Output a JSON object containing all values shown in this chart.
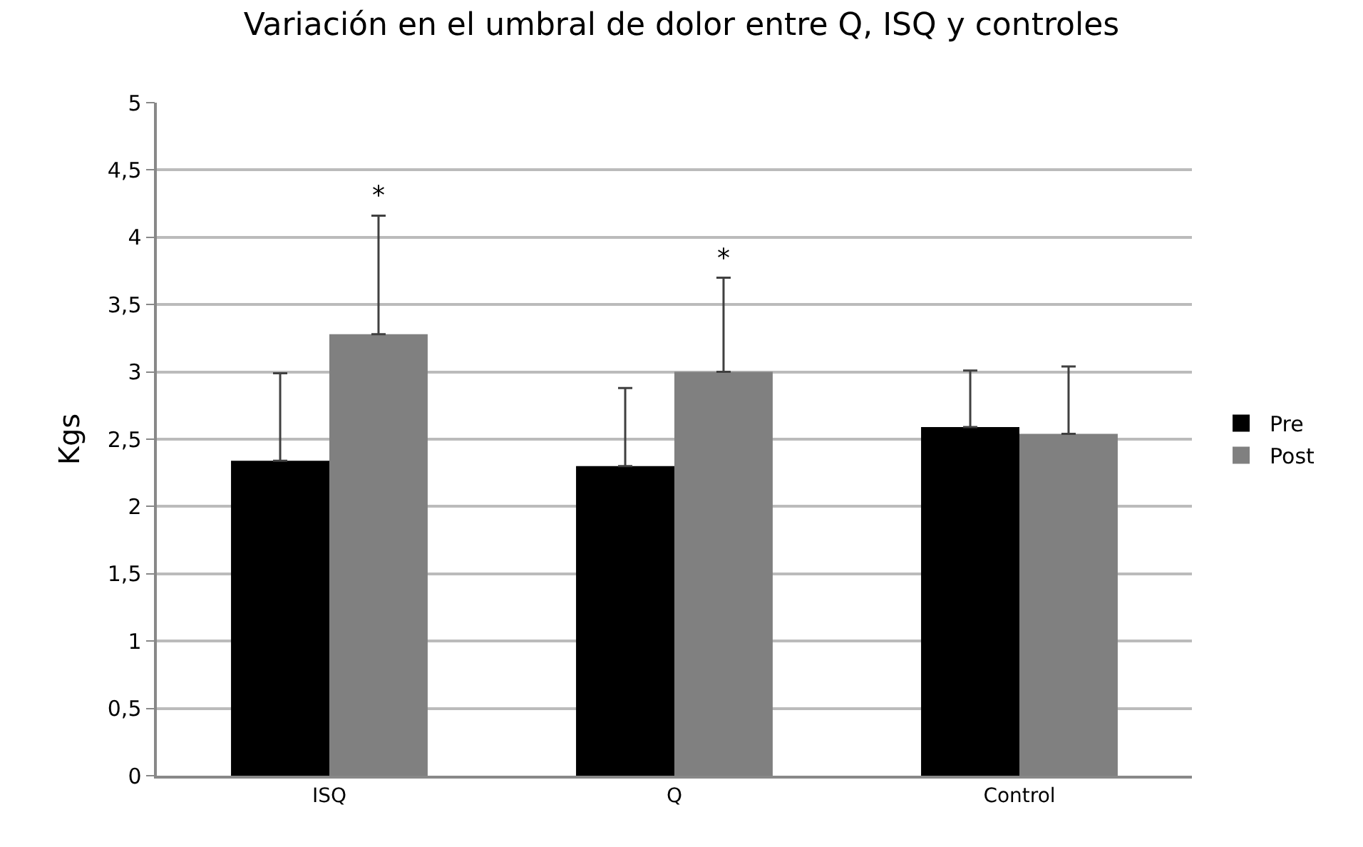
{
  "chart_data": {
    "type": "bar",
    "title": "Variación en el umbral de dolor entre Q, ISQ y controles",
    "ylabel": "Kgs",
    "categories": [
      "ISQ",
      "Q",
      "Control"
    ],
    "series": [
      {
        "name": "Pre",
        "color": "#000000",
        "values": [
          2.34,
          2.3,
          2.59
        ],
        "errors": [
          [
            2.34,
            2.99
          ],
          [
            2.3,
            2.88
          ],
          [
            2.59,
            3.01
          ]
        ]
      },
      {
        "name": "Post",
        "color": "#808080",
        "values": [
          3.28,
          3.0,
          2.54
        ],
        "errors": [
          [
            3.28,
            4.16
          ],
          [
            3.0,
            3.7
          ],
          [
            2.54,
            3.04
          ]
        ]
      }
    ],
    "annotations": [
      "*",
      "*"
    ],
    "ylim": [
      0,
      5
    ],
    "yticks": [
      0,
      {
        "value": 0.5,
        "label": "0,5"
      },
      1,
      {
        "value": 1.5,
        "label": "1,5"
      },
      2,
      {
        "value": 2.5,
        "label": "2,5"
      },
      3,
      {
        "value": 3.5,
        "label": "3,5"
      },
      4,
      {
        "value": 4.5,
        "label": "4,5"
      },
      5
    ],
    "grid": "y",
    "legend": "right"
  }
}
